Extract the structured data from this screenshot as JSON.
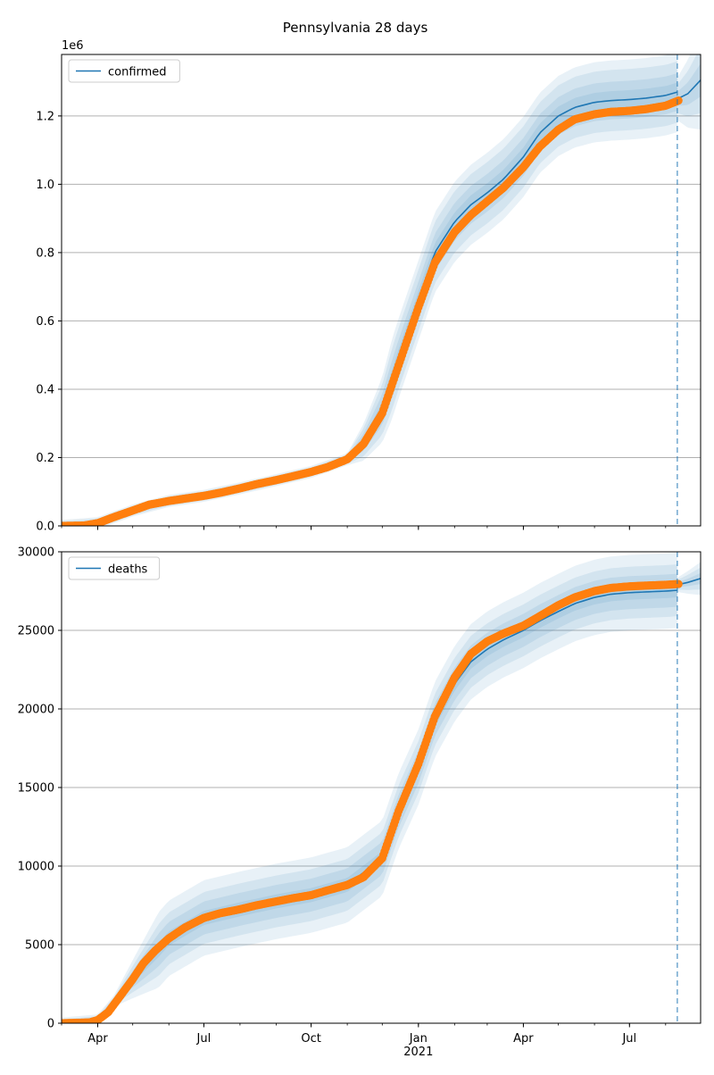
{
  "title": "Pennsylvania 28 days",
  "colors": {
    "model": "#1f77b4",
    "observed": "#ff7f0e",
    "band": "#1f77b4",
    "grid": "#b0b0b0",
    "cutoff": "#1f77b4"
  },
  "chart_data": [
    {
      "type": "line",
      "id": "confirmed",
      "legend": "confirmed",
      "legend_position": "top-left",
      "grid": "y",
      "scale_label": "1e6",
      "xlim": [
        "2020-03-01",
        "2021-08-31"
      ],
      "ylim": [
        0,
        1380000
      ],
      "yticks": [
        0,
        200000,
        400000,
        600000,
        800000,
        1000000,
        1200000
      ],
      "ytick_labels": [
        "0.0",
        "0.2",
        "0.4",
        "0.6",
        "0.8",
        "1.0",
        "1.2"
      ],
      "cutoff_date": "2021-08-11",
      "observed_end": "2021-08-12",
      "observed": [
        [
          "2020-03-01",
          0
        ],
        [
          "2020-03-20",
          1000
        ],
        [
          "2020-04-01",
          8000
        ],
        [
          "2020-04-15",
          26000
        ],
        [
          "2020-05-01",
          45000
        ],
        [
          "2020-05-15",
          62000
        ],
        [
          "2020-06-01",
          73000
        ],
        [
          "2020-06-15",
          80000
        ],
        [
          "2020-07-01",
          88000
        ],
        [
          "2020-07-15",
          97000
        ],
        [
          "2020-08-01",
          110000
        ],
        [
          "2020-08-15",
          122000
        ],
        [
          "2020-09-01",
          134000
        ],
        [
          "2020-09-15",
          145000
        ],
        [
          "2020-10-01",
          158000
        ],
        [
          "2020-10-15",
          172000
        ],
        [
          "2020-11-01",
          195000
        ],
        [
          "2020-11-15",
          240000
        ],
        [
          "2020-12-01",
          330000
        ],
        [
          "2020-12-15",
          470000
        ],
        [
          "2021-01-01",
          640000
        ],
        [
          "2021-01-15",
          770000
        ],
        [
          "2021-02-01",
          860000
        ],
        [
          "2021-02-15",
          910000
        ],
        [
          "2021-03-01",
          950000
        ],
        [
          "2021-03-15",
          990000
        ],
        [
          "2021-04-01",
          1050000
        ],
        [
          "2021-04-15",
          1110000
        ],
        [
          "2021-05-01",
          1160000
        ],
        [
          "2021-05-15",
          1190000
        ],
        [
          "2021-06-01",
          1205000
        ],
        [
          "2021-06-15",
          1212000
        ],
        [
          "2021-07-01",
          1215000
        ],
        [
          "2021-07-15",
          1220000
        ],
        [
          "2021-08-01",
          1230000
        ],
        [
          "2021-08-12",
          1245000
        ]
      ],
      "model": [
        [
          "2020-03-01",
          0
        ],
        [
          "2020-04-01",
          8000
        ],
        [
          "2020-05-01",
          45000
        ],
        [
          "2020-06-01",
          73000
        ],
        [
          "2020-07-01",
          88000
        ],
        [
          "2020-08-01",
          110000
        ],
        [
          "2020-09-01",
          134000
        ],
        [
          "2020-10-01",
          158000
        ],
        [
          "2020-11-01",
          195000
        ],
        [
          "2020-11-15",
          245000
        ],
        [
          "2020-12-01",
          340000
        ],
        [
          "2020-12-15",
          490000
        ],
        [
          "2021-01-01",
          660000
        ],
        [
          "2021-01-15",
          800000
        ],
        [
          "2021-02-01",
          890000
        ],
        [
          "2021-02-15",
          940000
        ],
        [
          "2021-03-01",
          975000
        ],
        [
          "2021-03-15",
          1015000
        ],
        [
          "2021-04-01",
          1080000
        ],
        [
          "2021-04-15",
          1150000
        ],
        [
          "2021-05-01",
          1200000
        ],
        [
          "2021-05-15",
          1225000
        ],
        [
          "2021-06-01",
          1240000
        ],
        [
          "2021-06-15",
          1245000
        ],
        [
          "2021-07-01",
          1248000
        ],
        [
          "2021-07-15",
          1252000
        ],
        [
          "2021-08-01",
          1260000
        ],
        [
          "2021-08-11",
          1270000
        ]
      ],
      "forecast": [
        [
          "2021-08-11",
          1250000
        ],
        [
          "2021-08-20",
          1265000
        ],
        [
          "2021-08-31",
          1305000
        ]
      ],
      "band_widths": [
        0.02,
        0.04,
        0.065,
        0.085
      ],
      "band_start": "2020-11-01",
      "forecast_band": 0.045
    },
    {
      "type": "line",
      "id": "deaths",
      "legend": "deaths",
      "legend_position": "top-left",
      "grid": "y",
      "xlim": [
        "2020-03-01",
        "2021-08-31"
      ],
      "ylim": [
        0,
        30000
      ],
      "yticks": [
        0,
        5000,
        10000,
        15000,
        20000,
        25000,
        30000
      ],
      "ytick_labels": [
        "0",
        "5000",
        "10000",
        "15000",
        "20000",
        "25000",
        "30000"
      ],
      "xticks": [
        "2020-04-01",
        "2020-07-01",
        "2020-10-01",
        "2021-01-01",
        "2021-04-01",
        "2021-07-01"
      ],
      "xtick_labels": [
        "Apr",
        "Jul",
        "Oct",
        "Jan",
        "Apr",
        "Jul"
      ],
      "year_label": "2021",
      "cutoff_date": "2021-08-11",
      "observed_end": "2021-08-12",
      "observed": [
        [
          "2020-03-01",
          0
        ],
        [
          "2020-03-25",
          50
        ],
        [
          "2020-04-01",
          200
        ],
        [
          "2020-04-10",
          700
        ],
        [
          "2020-04-20",
          1700
        ],
        [
          "2020-05-01",
          2800
        ],
        [
          "2020-05-10",
          3800
        ],
        [
          "2020-05-20",
          4600
        ],
        [
          "2020-06-01",
          5400
        ],
        [
          "2020-06-15",
          6100
        ],
        [
          "2020-07-01",
          6700
        ],
        [
          "2020-07-15",
          7000
        ],
        [
          "2020-08-01",
          7250
        ],
        [
          "2020-08-15",
          7500
        ],
        [
          "2020-09-01",
          7750
        ],
        [
          "2020-09-15",
          7950
        ],
        [
          "2020-10-01",
          8150
        ],
        [
          "2020-10-15",
          8450
        ],
        [
          "2020-11-01",
          8800
        ],
        [
          "2020-11-15",
          9300
        ],
        [
          "2020-12-01",
          10500
        ],
        [
          "2020-12-15",
          13500
        ],
        [
          "2021-01-01",
          16500
        ],
        [
          "2021-01-15",
          19500
        ],
        [
          "2021-02-01",
          22000
        ],
        [
          "2021-02-15",
          23500
        ],
        [
          "2021-03-01",
          24300
        ],
        [
          "2021-03-15",
          24800
        ],
        [
          "2021-04-01",
          25300
        ],
        [
          "2021-04-15",
          25900
        ],
        [
          "2021-05-01",
          26600
        ],
        [
          "2021-05-15",
          27100
        ],
        [
          "2021-06-01",
          27500
        ],
        [
          "2021-06-15",
          27700
        ],
        [
          "2021-07-01",
          27800
        ],
        [
          "2021-07-15",
          27850
        ],
        [
          "2021-08-01",
          27900
        ],
        [
          "2021-08-12",
          27950
        ]
      ],
      "model": [
        [
          "2020-03-01",
          0
        ],
        [
          "2020-04-01",
          200
        ],
        [
          "2020-05-01",
          2800
        ],
        [
          "2020-06-01",
          5400
        ],
        [
          "2020-07-01",
          6700
        ],
        [
          "2020-08-01",
          7250
        ],
        [
          "2020-09-01",
          7750
        ],
        [
          "2020-10-01",
          8150
        ],
        [
          "2020-11-01",
          8800
        ],
        [
          "2020-12-01",
          10500
        ],
        [
          "2020-12-15",
          13500
        ],
        [
          "2021-01-01",
          16300
        ],
        [
          "2021-01-15",
          19300
        ],
        [
          "2021-02-01",
          21600
        ],
        [
          "2021-02-15",
          23000
        ],
        [
          "2021-03-01",
          23800
        ],
        [
          "2021-03-15",
          24400
        ],
        [
          "2021-04-01",
          25000
        ],
        [
          "2021-04-15",
          25600
        ],
        [
          "2021-05-01",
          26200
        ],
        [
          "2021-05-15",
          26700
        ],
        [
          "2021-06-01",
          27100
        ],
        [
          "2021-06-15",
          27300
        ],
        [
          "2021-07-01",
          27400
        ],
        [
          "2021-08-01",
          27500
        ],
        [
          "2021-08-11",
          27550
        ]
      ],
      "forecast": [
        [
          "2021-08-11",
          27900
        ],
        [
          "2021-08-20",
          28050
        ],
        [
          "2021-08-31",
          28300
        ]
      ],
      "band_widths": [
        0.015,
        0.035,
        0.055,
        0.08
      ],
      "band_start": "2020-04-15",
      "forecast_band": 0.015
    }
  ]
}
